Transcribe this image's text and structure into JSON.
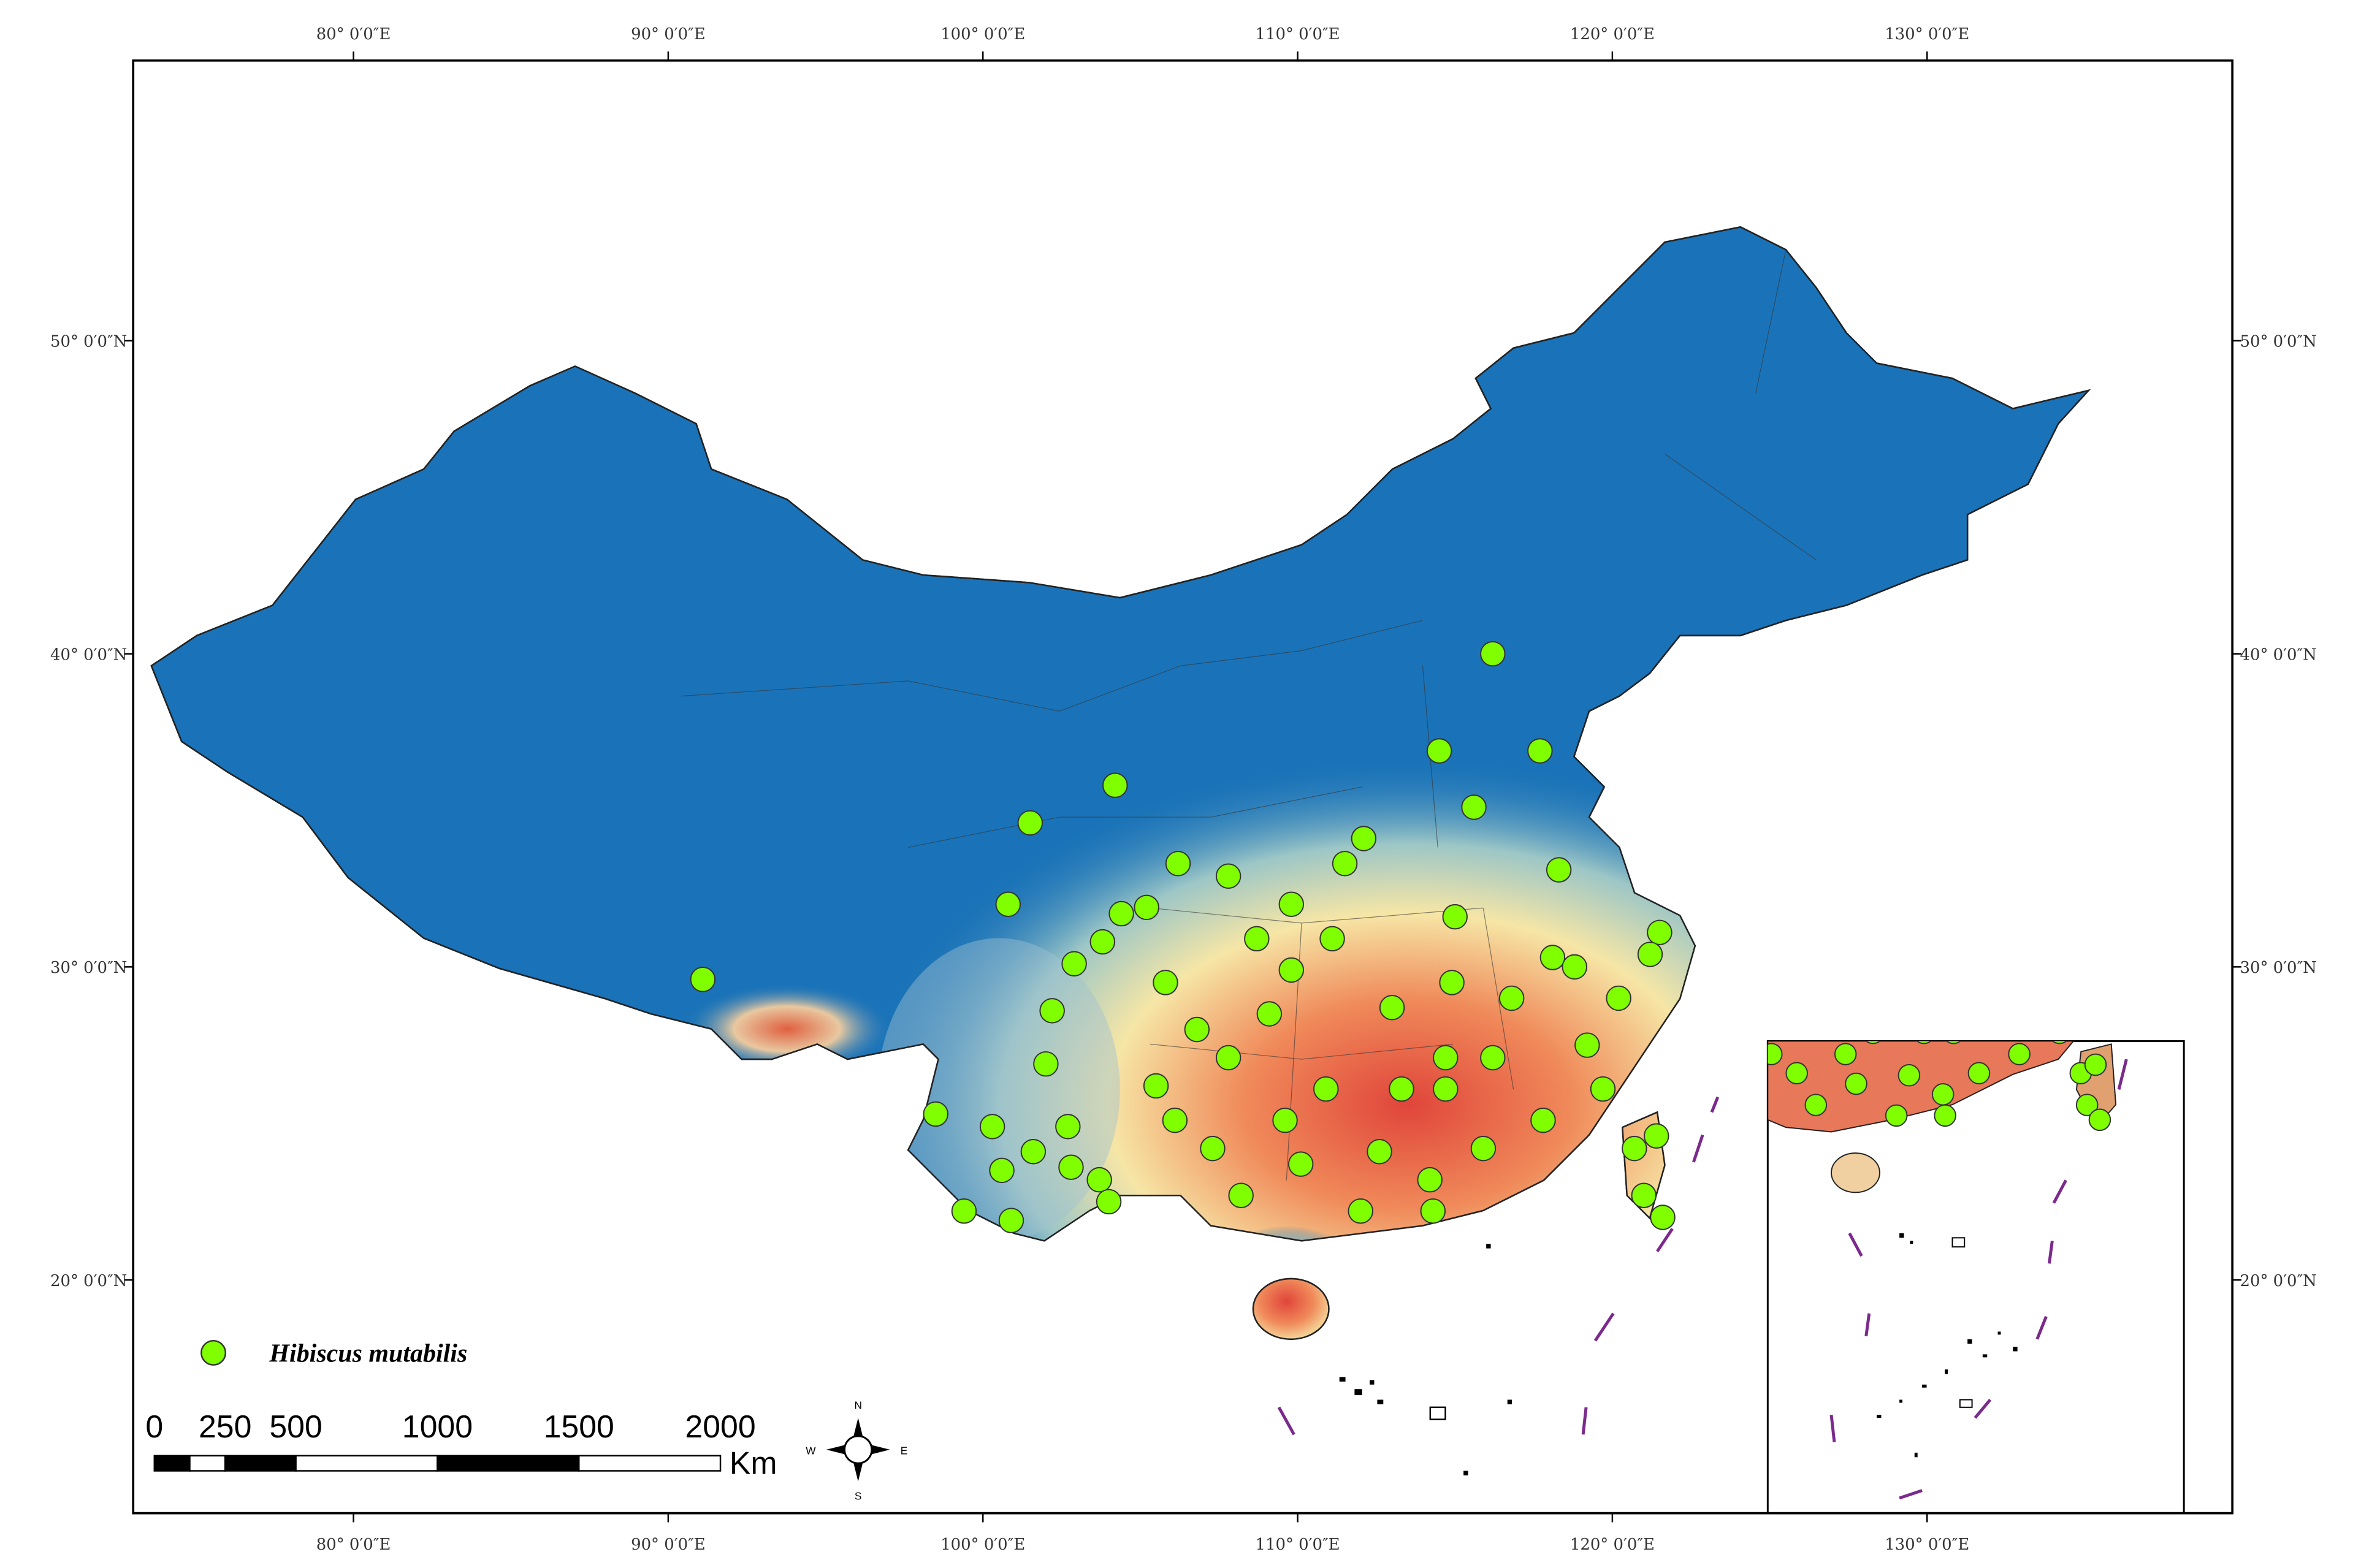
{
  "map": {
    "lon_range": [
      73,
      139.7
    ],
    "lat_range": [
      12.55,
      58.95
    ],
    "lon_ticks": [
      {
        "value": 80,
        "label": "80° 0′0″E"
      },
      {
        "value": 90,
        "label": "90° 0′0″E"
      },
      {
        "value": 100,
        "label": "100° 0′0″E"
      },
      {
        "value": 110,
        "label": "110° 0′0″E"
      },
      {
        "value": 120,
        "label": "120° 0′0″E"
      },
      {
        "value": 130,
        "label": "130° 0′0″E"
      }
    ],
    "lat_ticks": [
      {
        "value": 20,
        "label": "20° 0′0″N"
      },
      {
        "value": 30,
        "label": "30° 0′0″N"
      },
      {
        "value": 40,
        "label": "40° 0′0″N"
      },
      {
        "value": 50,
        "label": "50° 0′0″N"
      }
    ],
    "legend": {
      "label": "Hibiscus mutabilis",
      "color": "#7fff00"
    },
    "points": {
      "lon": [
        91.1,
        116.2,
        114.5,
        117.7,
        104.2,
        101.5,
        115.6,
        112.1,
        111.5,
        100.8,
        106.2,
        107.8,
        104.4,
        109.8,
        115.0,
        118.3,
        121.5,
        118.1,
        103.8,
        102.9,
        102.2,
        102.0,
        98.5,
        100.3,
        100.6,
        99.4,
        100.9,
        101.6,
        102.7,
        102.8,
        103.7,
        104.0,
        105.5,
        106.1,
        106.8,
        107.8,
        109.1,
        109.8,
        111.1,
        113.0,
        114.9,
        116.8,
        118.8,
        120.2,
        119.7,
        117.8,
        115.9,
        114.2,
        112.0,
        110.1,
        108.2,
        109.6,
        110.9,
        113.3,
        114.7,
        116.2,
        120.7,
        121.4,
        121.0,
        121.6,
        121.2,
        119.2,
        114.3,
        112.6,
        114.7,
        107.3,
        105.8,
        105.2,
        108.7
      ],
      "lat": [
        29.6,
        40.0,
        36.9,
        36.9,
        35.8,
        34.6,
        35.1,
        34.1,
        33.3,
        32.0,
        33.3,
        32.9,
        31.7,
        32.0,
        31.6,
        33.1,
        31.1,
        30.3,
        30.8,
        30.1,
        28.6,
        26.9,
        25.3,
        24.9,
        23.5,
        22.2,
        21.9,
        24.1,
        24.9,
        23.6,
        23.2,
        22.5,
        26.2,
        25.1,
        28.0,
        27.1,
        28.5,
        29.9,
        30.9,
        28.7,
        29.5,
        29.0,
        30.0,
        29.0,
        26.1,
        25.1,
        24.2,
        23.2,
        22.2,
        23.7,
        22.7,
        25.1,
        26.1,
        26.1,
        26.1,
        27.1,
        24.2,
        24.6,
        22.7,
        22.0,
        30.4,
        27.5,
        22.2,
        24.1,
        27.1,
        24.2,
        29.5,
        31.9,
        30.9
      ]
    },
    "scale_bar": {
      "ticks": [
        0,
        250,
        500,
        1000,
        1500,
        2000
      ],
      "unit": "Km"
    },
    "compass": {
      "n": "N",
      "e": "E",
      "s": "S",
      "w": "W"
    }
  }
}
